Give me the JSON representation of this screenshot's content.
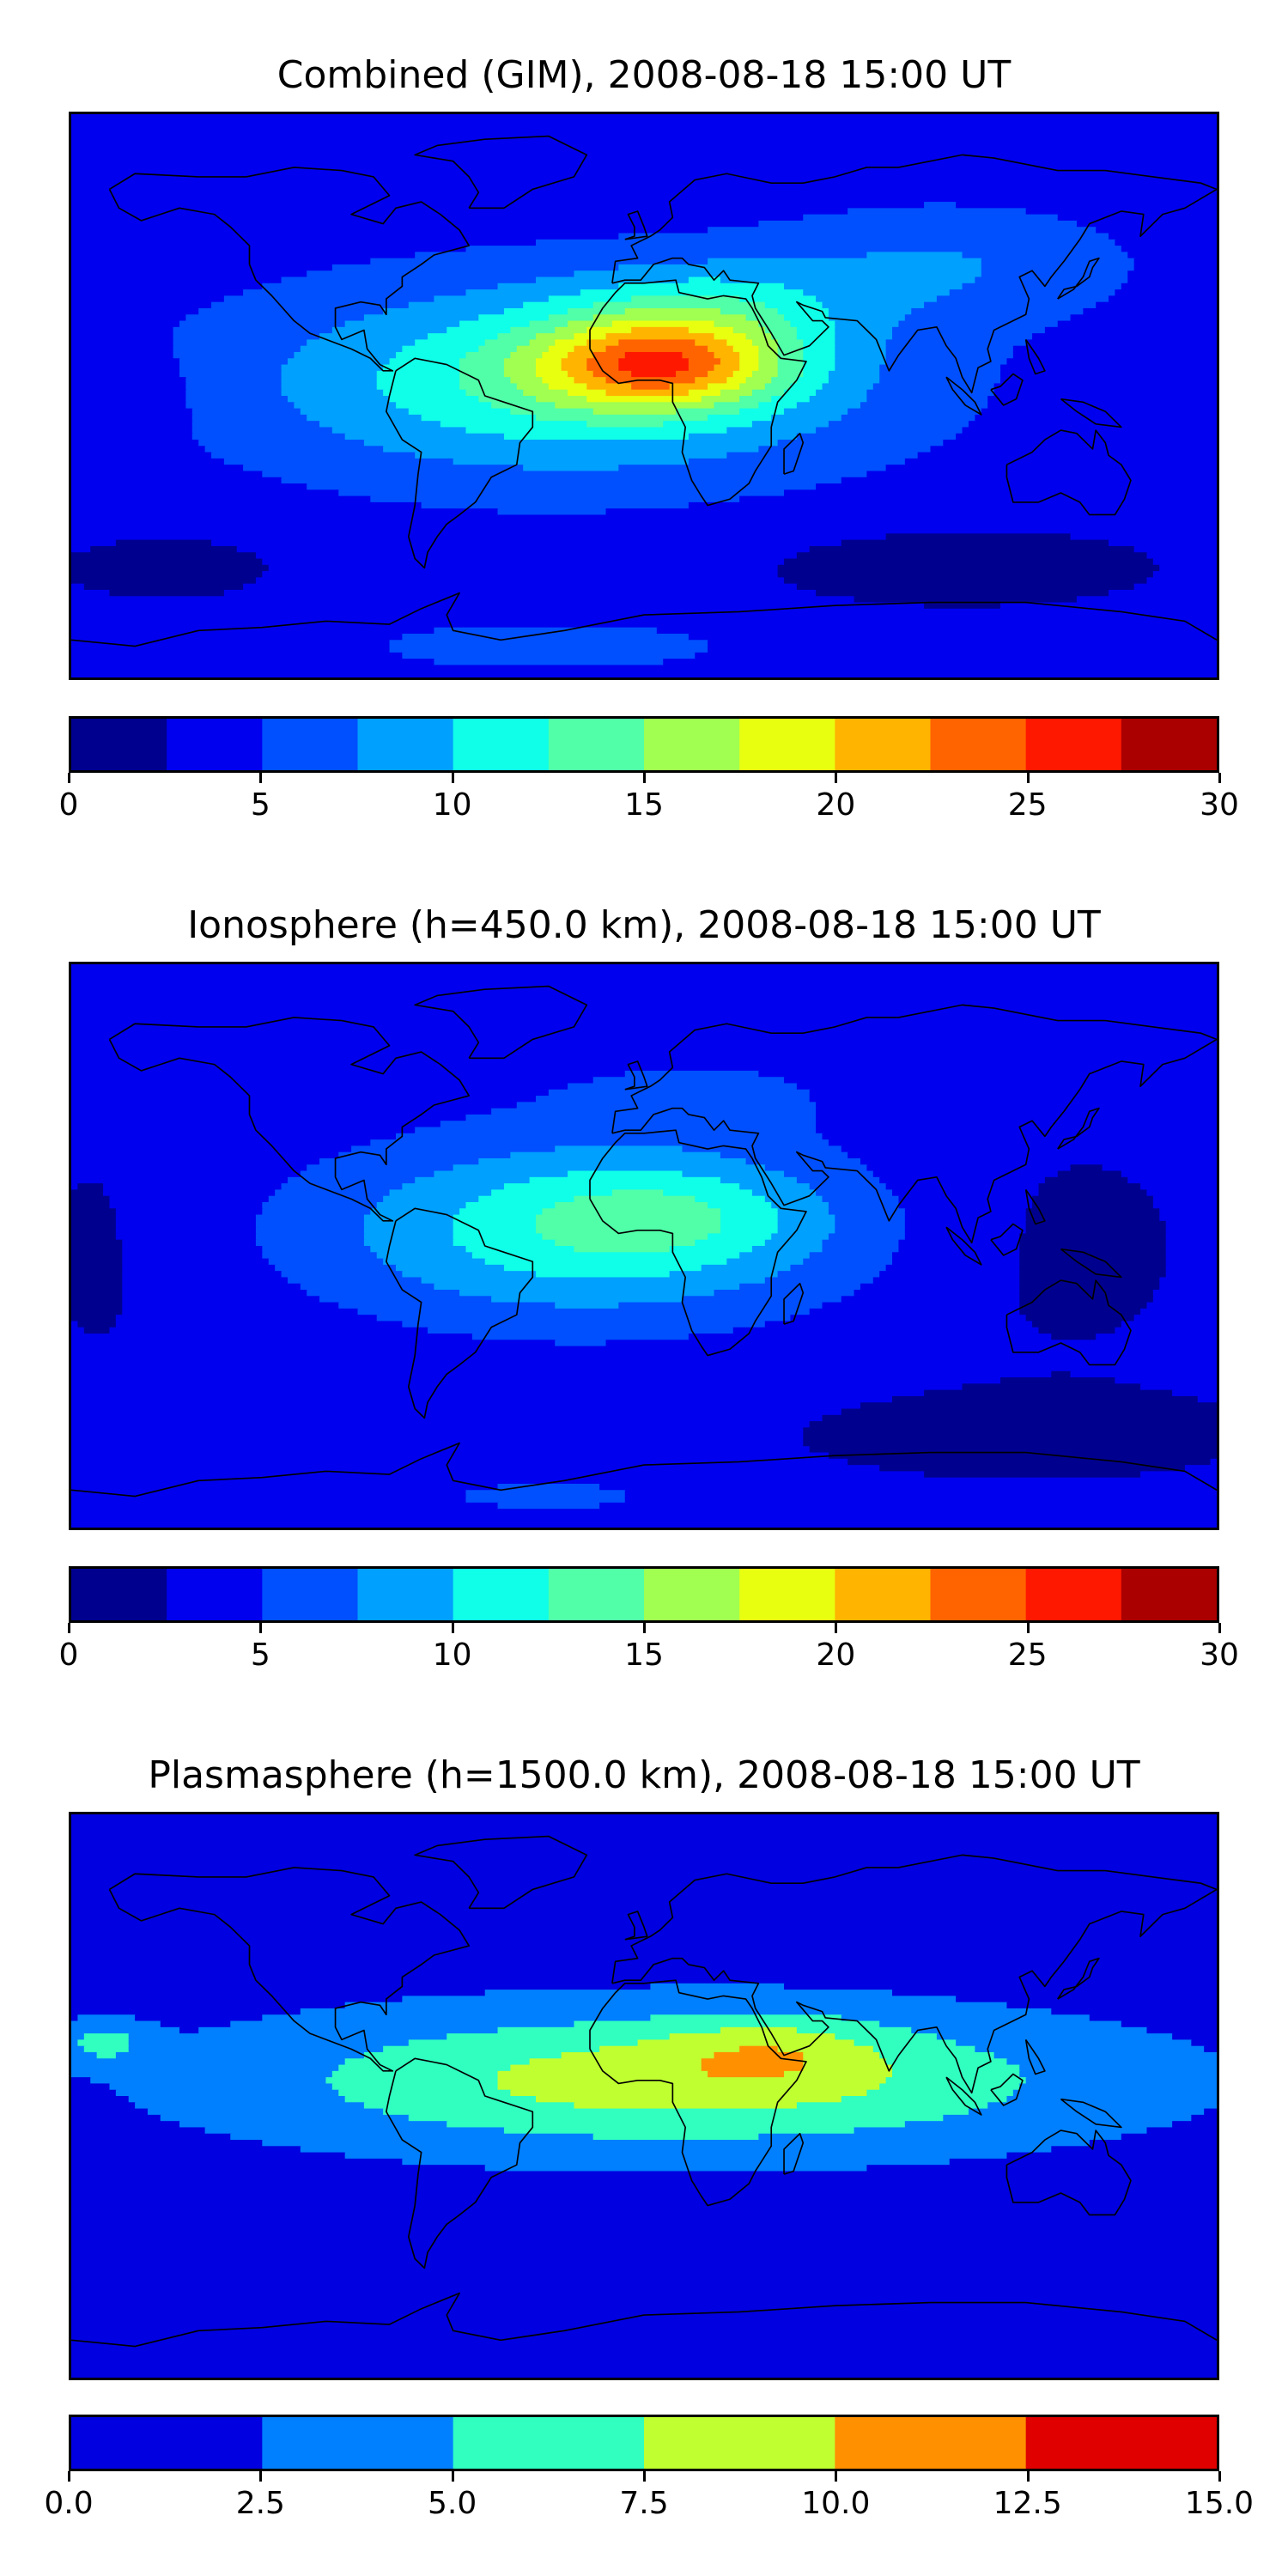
{
  "chart_data": [
    {
      "type": "heatmap",
      "title": "Combined (GIM), 2008-08-18 15:00 UT",
      "xlabel": "",
      "ylabel": "",
      "map_extent": {
        "lon": [
          -180,
          180
        ],
        "lat": [
          -90,
          90
        ]
      },
      "colorbar": {
        "levels": [
          0,
          2.5,
          5,
          7.5,
          10,
          12.5,
          15,
          17.5,
          20,
          22.5,
          25,
          27.5,
          30
        ],
        "colors": [
          "#00008f",
          "#0000ee",
          "#0050ff",
          "#00a0ff",
          "#10ffe8",
          "#50ffa8",
          "#a0ff50",
          "#e8ff10",
          "#ffb400",
          "#ff6400",
          "#ff1800",
          "#aa0000"
        ],
        "tick_labels": [
          "0",
          "5",
          "10",
          "15",
          "20",
          "25",
          "30"
        ],
        "tick_values": [
          0,
          5,
          10,
          15,
          20,
          25,
          30
        ],
        "vmin": 0,
        "vmax": 30
      },
      "field": {
        "background": 3.8,
        "blobs": [
          {
            "lon": -25,
            "lat": 5,
            "sx": 95,
            "sy": 30,
            "amp": 9.0
          },
          {
            "lon": 5,
            "lat": 10,
            "sx": 38,
            "sy": 14,
            "amp": 13.5
          },
          {
            "lon": 20,
            "lat": 28,
            "sx": 45,
            "sy": 15,
            "amp": 4.5
          },
          {
            "lon": 95,
            "lat": 42,
            "sx": 55,
            "sy": 18,
            "amp": 3.5
          },
          {
            "lon": -160,
            "lat": 0,
            "sx": 18,
            "sy": 14,
            "amp": -1.5
          },
          {
            "lon": 100,
            "lat": -55,
            "sx": 70,
            "sy": 14,
            "amp": -2.8
          },
          {
            "lon": -150,
            "lat": -55,
            "sx": 40,
            "sy": 12,
            "amp": -2.5
          },
          {
            "lon": -30,
            "lat": -80,
            "sx": 60,
            "sy": 8,
            "amp": 2.5
          }
        ]
      }
    },
    {
      "type": "heatmap",
      "title": "Ionosphere  (h=450.0 km), 2008-08-18 15:00 UT",
      "xlabel": "",
      "ylabel": "",
      "map_extent": {
        "lon": [
          -180,
          180
        ],
        "lat": [
          -90,
          90
        ]
      },
      "colorbar": {
        "levels": [
          0,
          2.5,
          5,
          7.5,
          10,
          12.5,
          15,
          17.5,
          20,
          22.5,
          25,
          27.5,
          30
        ],
        "colors": [
          "#00008f",
          "#0000ee",
          "#0050ff",
          "#00a0ff",
          "#10ffe8",
          "#50ffa8",
          "#a0ff50",
          "#e8ff10",
          "#ffb400",
          "#ff6400",
          "#ff1800",
          "#aa0000"
        ],
        "tick_labels": [
          "0",
          "5",
          "10",
          "15",
          "20",
          "25",
          "30"
        ],
        "tick_values": [
          0,
          5,
          10,
          15,
          20,
          25,
          30
        ],
        "vmin": 0,
        "vmax": 30
      },
      "field": {
        "background": 3.0,
        "blobs": [
          {
            "lon": -20,
            "lat": 5,
            "sx": 85,
            "sy": 30,
            "amp": 8.5
          },
          {
            "lon": 10,
            "lat": 10,
            "sx": 45,
            "sy": 16,
            "amp": 3.5
          },
          {
            "lon": 20,
            "lat": 50,
            "sx": 60,
            "sy": 15,
            "amp": 2.0
          },
          {
            "lon": -170,
            "lat": 0,
            "sx": 25,
            "sy": 40,
            "amp": -1.0
          },
          {
            "lon": 130,
            "lat": 0,
            "sx": 40,
            "sy": 35,
            "amp": -1.2
          },
          {
            "lon": 120,
            "lat": -60,
            "sx": 70,
            "sy": 14,
            "amp": -1.5
          },
          {
            "lon": -30,
            "lat": -80,
            "sx": 55,
            "sy": 8,
            "amp": 2.5
          }
        ]
      }
    },
    {
      "type": "heatmap",
      "title": "Plasmasphere (h=1500.0 km), 2008-08-18 15:00 UT",
      "xlabel": "",
      "ylabel": "",
      "map_extent": {
        "lon": [
          -180,
          180
        ],
        "lat": [
          -90,
          90
        ]
      },
      "colorbar": {
        "levels": [
          0,
          2.5,
          5,
          7.5,
          10,
          12.5,
          15
        ],
        "colors": [
          "#0000e0",
          "#0080ff",
          "#30ffc0",
          "#c0ff30",
          "#ff9000",
          "#e00000"
        ],
        "tick_labels": [
          "0.0",
          "2.5",
          "5.0",
          "7.5",
          "10.0",
          "12.5",
          "15.0"
        ],
        "tick_values": [
          0,
          2.5,
          5,
          7.5,
          10,
          12.5,
          15
        ],
        "vmin": 0,
        "vmax": 15
      },
      "field": {
        "background": 1.3,
        "blobs": [
          {
            "lon": 10,
            "lat": 5,
            "sx": 130,
            "sy": 22,
            "amp": 7.5
          },
          {
            "lon": 40,
            "lat": 15,
            "sx": 35,
            "sy": 11,
            "amp": 3.0
          },
          {
            "lon": -170,
            "lat": 17,
            "sx": 14,
            "sy": 7,
            "amp": 4.0
          }
        ]
      }
    }
  ]
}
